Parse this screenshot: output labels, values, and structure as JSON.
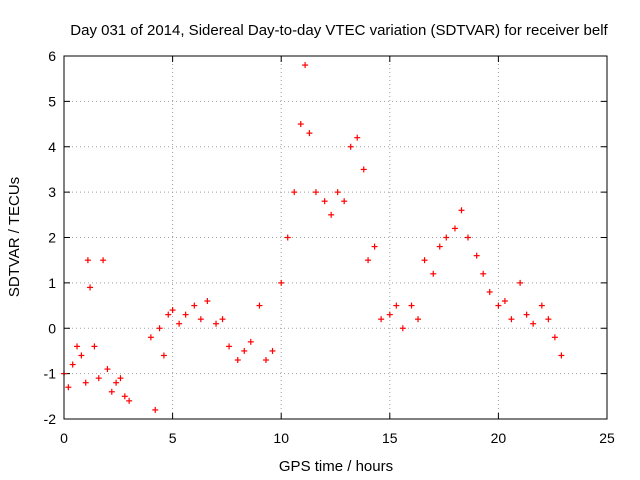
{
  "chart_data": {
    "type": "scatter",
    "title": "Day 031 of 2014, Sidereal Day-to-day VTEC variation (SDTVAR) for receiver belf",
    "xlabel": "GPS time / hours",
    "ylabel": "SDTVAR / TECUs",
    "xlim": [
      0,
      25
    ],
    "ylim": [
      -2,
      6
    ],
    "xticks": [
      0,
      5,
      10,
      15,
      20,
      25
    ],
    "yticks": [
      -2,
      -1,
      0,
      1,
      2,
      3,
      4,
      5,
      6
    ],
    "grid": true,
    "marker": "+",
    "color": "#ff0000",
    "series": [
      {
        "name": "SDTVAR",
        "x": [
          0.0,
          0.2,
          0.4,
          0.6,
          0.8,
          1.0,
          1.1,
          1.2,
          1.4,
          1.6,
          1.8,
          2.0,
          2.2,
          2.4,
          2.6,
          2.8,
          3.0,
          4.0,
          4.2,
          4.4,
          4.6,
          4.8,
          5.0,
          5.3,
          5.6,
          6.0,
          6.3,
          6.6,
          7.0,
          7.3,
          7.6,
          8.0,
          8.3,
          8.6,
          9.0,
          9.3,
          9.6,
          10.0,
          10.3,
          10.6,
          10.9,
          11.1,
          11.3,
          11.6,
          12.0,
          12.3,
          12.6,
          12.9,
          13.2,
          13.5,
          13.8,
          14.0,
          14.3,
          14.6,
          15.0,
          15.3,
          15.6,
          16.0,
          16.3,
          16.6,
          17.0,
          17.3,
          17.6,
          18.0,
          18.3,
          18.6,
          19.0,
          19.3,
          19.6,
          20.0,
          20.3,
          20.6,
          21.0,
          21.3,
          21.6,
          22.0,
          22.3,
          22.6,
          22.9
        ],
        "y": [
          -1.0,
          -1.3,
          -0.8,
          -0.4,
          -0.6,
          -1.2,
          1.5,
          0.9,
          -0.4,
          -1.1,
          1.5,
          -0.9,
          -1.4,
          -1.2,
          -1.1,
          -1.5,
          -1.6,
          -0.2,
          -1.8,
          0.0,
          -0.6,
          0.3,
          0.4,
          0.1,
          0.3,
          0.5,
          0.2,
          0.6,
          0.1,
          0.2,
          -0.4,
          -0.7,
          -0.5,
          -0.3,
          0.5,
          -0.7,
          -0.5,
          1.0,
          2.0,
          3.0,
          4.5,
          5.8,
          4.3,
          3.0,
          2.8,
          2.5,
          3.0,
          2.8,
          4.0,
          4.2,
          3.5,
          1.5,
          1.8,
          0.2,
          0.3,
          0.5,
          0.0,
          0.5,
          0.2,
          1.5,
          1.2,
          1.8,
          2.0,
          2.2,
          2.6,
          2.0,
          1.6,
          1.2,
          0.8,
          0.5,
          0.6,
          0.2,
          1.0,
          0.3,
          0.1,
          0.5,
          0.2,
          -0.2,
          -0.6
        ]
      }
    ]
  }
}
